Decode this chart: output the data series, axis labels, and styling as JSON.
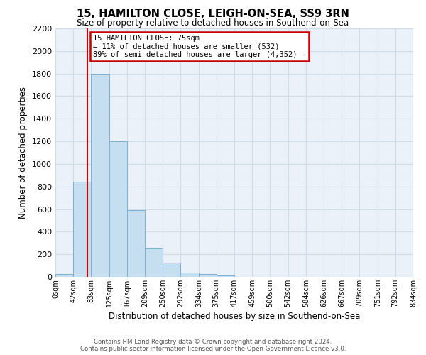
{
  "title": "15, HAMILTON CLOSE, LEIGH-ON-SEA, SS9 3RN",
  "subtitle": "Size of property relative to detached houses in Southend-on-Sea",
  "xlabel": "Distribution of detached houses by size in Southend-on-Sea",
  "ylabel": "Number of detached properties",
  "bin_labels": [
    "0sqm",
    "42sqm",
    "83sqm",
    "125sqm",
    "167sqm",
    "209sqm",
    "250sqm",
    "292sqm",
    "334sqm",
    "375sqm",
    "417sqm",
    "459sqm",
    "500sqm",
    "542sqm",
    "584sqm",
    "626sqm",
    "667sqm",
    "709sqm",
    "751sqm",
    "792sqm",
    "834sqm"
  ],
  "bar_heights": [
    25,
    840,
    1800,
    1200,
    590,
    255,
    125,
    40,
    25,
    15,
    0,
    0,
    0,
    0,
    0,
    0,
    0,
    0,
    0,
    0
  ],
  "bar_color": "#c6dff0",
  "bar_edge_color": "#7ab0d4",
  "property_line_x": 75,
  "ylim": [
    0,
    2200
  ],
  "yticks": [
    0,
    200,
    400,
    600,
    800,
    1000,
    1200,
    1400,
    1600,
    1800,
    2000,
    2200
  ],
  "annotation_title": "15 HAMILTON CLOSE: 75sqm",
  "annotation_line1": "← 11% of detached houses are smaller (532)",
  "annotation_line2": "89% of semi-detached houses are larger (4,352) →",
  "footer_line1": "Contains HM Land Registry data © Crown copyright and database right 2024.",
  "footer_line2": "Contains public sector information licensed under the Open Government Licence v3.0.",
  "grid_color": "#d0dde8",
  "bg_color": "#eaf1f8",
  "annotation_box_color": "#ffffff",
  "annotation_box_edge": "#cc0000",
  "property_line_color": "#cc0000"
}
